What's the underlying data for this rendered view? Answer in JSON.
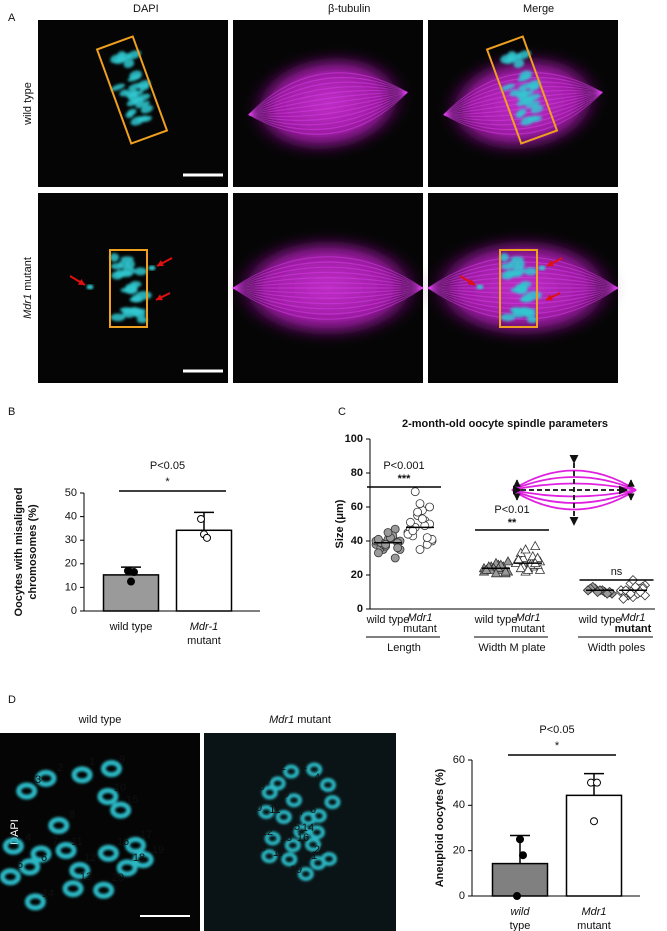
{
  "panel_labels": [
    "A",
    "B",
    "C",
    "D"
  ],
  "panel_a": {
    "columns": [
      "DAPI",
      "β-tubulin",
      "Merge"
    ],
    "rows": [
      [
        "wild type"
      ],
      [
        "Mdr1",
        "mutant"
      ]
    ]
  },
  "panel_d": {
    "columns": [
      [
        "wild type"
      ],
      [
        "Mdr1",
        "mutant"
      ]
    ],
    "row": "DAPI",
    "wild_type_numbers": [
      1,
      2,
      3,
      4,
      5,
      6,
      7,
      8,
      9,
      10,
      11,
      12,
      13,
      14,
      15,
      16,
      17,
      18,
      19,
      20
    ],
    "mutant_numbers": [
      1,
      2,
      3,
      4,
      5,
      6,
      7,
      8,
      9,
      10,
      11,
      12,
      13,
      14,
      15,
      16,
      17,
      18,
      19,
      20,
      21
    ]
  },
  "chart_data": [
    {
      "type": "bar",
      "ylabel": [
        "Oocytes with misaligned",
        "chromosomes (%)"
      ],
      "categories": [
        [
          "wild type"
        ],
        [
          "Mdr-1",
          "mutant"
        ]
      ],
      "values": [
        15.3,
        34.2
      ],
      "errors": [
        3.3,
        7.6
      ],
      "points": [
        [
          17,
          12.5,
          16.5
        ],
        [
          39,
          32.5,
          31
        ]
      ],
      "colors": [
        "#9a9a9a",
        "#ffffff"
      ],
      "ylim": [
        0,
        50
      ],
      "yticks": [
        0,
        10,
        20,
        30,
        40,
        50
      ],
      "annotation": {
        "text": "P<0.05",
        "stars": "*"
      }
    },
    {
      "type": "dotplot",
      "title": "2-month-old oocyte spindle parameters",
      "ylabel": "Size (μm)",
      "ylim": [
        0,
        100
      ],
      "yticks": [
        0,
        20,
        40,
        60,
        80,
        100
      ],
      "groups": [
        {
          "label": "Length",
          "marker": "circle",
          "annotation": {
            "text": "P<0.001",
            "stars": "***"
          }
        },
        {
          "label": "Width M plate",
          "marker": "triangle",
          "annotation": {
            "text": "P<0.01",
            "stars": "**"
          }
        },
        {
          "label": "Width poles",
          "marker": "diamond",
          "annotation": {
            "text": "ns"
          }
        }
      ],
      "categories": [
        [
          "wild type"
        ],
        [
          "Mdr1",
          "mutant"
        ],
        [
          "wild type"
        ],
        [
          "Mdr1",
          "mutant"
        ],
        [
          "wild type"
        ],
        [
          "Mdr1",
          "mutant"
        ]
      ],
      "colors": [
        "#9a9a9a",
        "#ffffff"
      ],
      "points": [
        [
          38,
          42,
          35,
          40,
          44,
          36,
          39,
          41,
          33,
          47,
          37,
          40,
          43,
          38,
          35,
          42,
          39,
          36,
          45,
          41,
          30,
          38
        ],
        [
          45,
          52,
          48,
          40,
          58,
          43,
          50,
          62,
          47,
          38,
          55,
          44,
          49,
          69,
          41,
          53,
          46,
          60,
          35,
          51,
          42,
          57
        ],
        [
          24,
          23,
          25,
          22,
          26,
          24,
          21,
          27,
          23,
          25,
          24,
          22,
          26,
          23,
          28,
          24,
          25,
          22,
          21,
          23
        ],
        [
          27,
          25,
          30,
          23,
          28,
          33,
          26,
          24,
          29,
          37,
          22,
          27,
          31,
          25,
          28,
          26,
          24,
          30,
          23,
          29,
          27,
          35
        ],
        [
          11,
          10,
          12,
          9,
          11,
          13,
          10,
          11,
          12,
          9,
          10,
          11
        ],
        [
          10,
          12,
          8,
          14,
          11,
          9,
          13,
          7,
          10,
          12,
          15,
          11,
          9,
          10,
          8,
          13,
          11,
          12,
          17,
          6,
          10,
          9
        ]
      ],
      "means": [
        39,
        48,
        24,
        27,
        11,
        11
      ]
    },
    {
      "type": "bar",
      "ylabel": [
        "Aneuploid oocytes (%)"
      ],
      "categories": [
        [
          "wild",
          "type"
        ],
        [
          "Mdr1",
          "mutant"
        ]
      ],
      "values": [
        14.3,
        44.4
      ],
      "errors": [
        12.4,
        9.6
      ],
      "points": [
        [
          0,
          25,
          18
        ],
        [
          50,
          33,
          50
        ]
      ],
      "colors": [
        "#808080",
        "#ffffff"
      ],
      "ylim": [
        0,
        60
      ],
      "yticks": [
        0,
        20,
        40,
        60
      ],
      "annotation": {
        "text": "P<0.05",
        "stars": "*"
      }
    }
  ]
}
